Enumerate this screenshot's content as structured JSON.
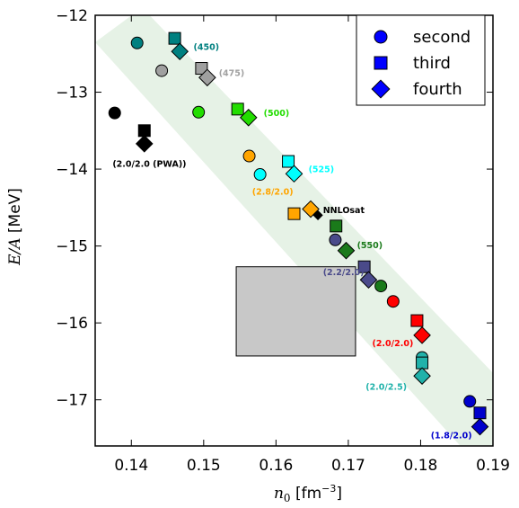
{
  "chart_data": {
    "type": "scatter",
    "xlabel": "n0 [fm⁻³]",
    "xlabel_parts": {
      "var": "n",
      "sub": "0",
      "unit": " [fm",
      "sup": "−3",
      "close": "]"
    },
    "ylabel": "E/A [MeV]",
    "ylabel_parts": {
      "var": "E/A",
      "unit": " [MeV]"
    },
    "xlim": [
      0.135,
      0.19
    ],
    "ylim": [
      -17.6,
      -12.0
    ],
    "x_ticks": [
      0.14,
      0.15,
      0.16,
      0.17,
      0.18,
      0.19
    ],
    "x_tick_labels": [
      "0.14",
      "0.15",
      "0.16",
      "0.17",
      "0.18",
      "0.19"
    ],
    "y_ticks": [
      -12,
      -13,
      -14,
      -15,
      -16,
      -17
    ],
    "y_tick_labels": [
      "−12",
      "−13",
      "−14",
      "−15",
      "−16",
      "−17"
    ],
    "legend": {
      "placement": "top-right",
      "entries": [
        {
          "label": "second",
          "marker": "circle"
        },
        {
          "label": "third",
          "marker": "square"
        },
        {
          "label": "fourth",
          "marker": "diamond"
        }
      ],
      "color": "#0000ff"
    },
    "band": {
      "color": "#e6f2e6",
      "polygon": [
        [
          0.135,
          -12.35
        ],
        [
          0.1415,
          -11.9
        ],
        [
          0.19,
          -16.65
        ],
        [
          0.19,
          -17.6
        ],
        [
          0.1855,
          -17.6
        ]
      ]
    },
    "box": {
      "x": [
        0.1545,
        0.171
      ],
      "y": [
        -16.43,
        -15.27
      ],
      "color": "#c8c8c8"
    },
    "series": [
      {
        "name": "(2.0/2.0 (PWA))",
        "color": "#000000",
        "points": [
          {
            "order": "second",
            "x": 0.1377,
            "y": -13.27
          },
          {
            "order": "third",
            "x": 0.1418,
            "y": -13.5
          },
          {
            "order": "fourth",
            "x": 0.1418,
            "y": -13.67
          }
        ]
      },
      {
        "name": "(450)",
        "color": "#008080",
        "points": [
          {
            "order": "second",
            "x": 0.1408,
            "y": -12.36
          },
          {
            "order": "third",
            "x": 0.146,
            "y": -12.3
          },
          {
            "order": "fourth",
            "x": 0.1467,
            "y": -12.47
          }
        ]
      },
      {
        "name": "(475)",
        "color": "#a0a0a0",
        "points": [
          {
            "order": "second",
            "x": 0.1442,
            "y": -12.72
          },
          {
            "order": "third",
            "x": 0.1497,
            "y": -12.69
          },
          {
            "order": "fourth",
            "x": 0.1505,
            "y": -12.81
          }
        ]
      },
      {
        "name": "(500)",
        "color": "#22dd00",
        "points": [
          {
            "order": "second",
            "x": 0.1493,
            "y": -13.26
          },
          {
            "order": "third",
            "x": 0.1547,
            "y": -13.22
          },
          {
            "order": "fourth",
            "x": 0.1562,
            "y": -13.33
          }
        ]
      },
      {
        "name": "(525)",
        "color": "#00ffff",
        "points": [
          {
            "order": "second",
            "x": 0.1578,
            "y": -14.07
          },
          {
            "order": "third",
            "x": 0.1617,
            "y": -13.9
          },
          {
            "order": "fourth",
            "x": 0.1625,
            "y": -14.06
          }
        ]
      },
      {
        "name": "(2.8/2.0)",
        "color": "#ffa500",
        "points": [
          {
            "order": "second",
            "x": 0.1563,
            "y": -13.83
          },
          {
            "order": "third",
            "x": 0.1625,
            "y": -14.58
          },
          {
            "order": "fourth",
            "x": 0.1648,
            "y": -14.52
          }
        ]
      },
      {
        "name": "NNLOsat",
        "color": "#000000",
        "points": [
          {
            "order": "fourth",
            "x": 0.1658,
            "y": -14.6
          }
        ]
      },
      {
        "name": "(550)",
        "color": "#1a7a1a",
        "points": [
          {
            "order": "second",
            "x": 0.1745,
            "y": -15.52
          },
          {
            "order": "third",
            "x": 0.1683,
            "y": -14.74
          },
          {
            "order": "fourth",
            "x": 0.1697,
            "y": -15.06
          }
        ]
      },
      {
        "name": "(2.2/2.0)",
        "color": "#4a4a8a",
        "points": [
          {
            "order": "second",
            "x": 0.1682,
            "y": -14.92
          },
          {
            "order": "third",
            "x": 0.1722,
            "y": -15.27
          },
          {
            "order": "fourth",
            "x": 0.1728,
            "y": -15.44
          }
        ]
      },
      {
        "name": "(2.0/2.0)",
        "color": "#ff0000",
        "points": [
          {
            "order": "second",
            "x": 0.1762,
            "y": -15.72
          },
          {
            "order": "third",
            "x": 0.1795,
            "y": -15.97
          },
          {
            "order": "fourth",
            "x": 0.1802,
            "y": -16.16
          }
        ]
      },
      {
        "name": "(2.0/2.5)",
        "color": "#20b2aa",
        "points": [
          {
            "order": "second",
            "x": 0.1802,
            "y": -16.45
          },
          {
            "order": "third",
            "x": 0.1802,
            "y": -16.52
          },
          {
            "order": "fourth",
            "x": 0.1802,
            "y": -16.69
          }
        ]
      },
      {
        "name": "(1.8/2.0)",
        "color": "#0000cc",
        "points": [
          {
            "order": "second",
            "x": 0.1868,
            "y": -17.02
          },
          {
            "order": "third",
            "x": 0.1882,
            "y": -17.17
          },
          {
            "order": "fourth",
            "x": 0.1882,
            "y": -17.35
          }
        ]
      }
    ],
    "annotations": [
      {
        "text": "(450)",
        "series": "(450)",
        "x": 0.1486,
        "y": -12.45
      },
      {
        "text": "(475)",
        "series": "(475)",
        "x": 0.1521,
        "y": -12.79
      },
      {
        "text": "(500)",
        "series": "(500)",
        "x": 0.1583,
        "y": -13.31
      },
      {
        "text": "(525)",
        "series": "(525)",
        "x": 0.1645,
        "y": -14.04
      },
      {
        "text": "(2.8/2.0)",
        "series": "(2.8/2.0)",
        "x": 0.1567,
        "y": -14.33
      },
      {
        "text": "(2.0/2.0 (PWA))",
        "series": "(2.0/2.0 (PWA))",
        "x": 0.1374,
        "y": -13.97
      },
      {
        "text": "NNLOsat",
        "series": "NNLOsat",
        "x": 0.1665,
        "y": -14.57
      },
      {
        "text": "(550)",
        "series": "(550)",
        "x": 0.1712,
        "y": -15.03
      },
      {
        "text": "(2.2/2.0)",
        "series": "(2.2/2.0)",
        "x": 0.1665,
        "y": -15.38
      },
      {
        "text": "(2.0/2.0)",
        "series": "(2.0/2.0)",
        "x": 0.1733,
        "y": -16.3
      },
      {
        "text": "(2.0/2.5)",
        "series": "(2.0/2.5)",
        "x": 0.1724,
        "y": -16.87
      },
      {
        "text": "(1.8/2.0)",
        "series": "(1.8/2.0)",
        "x": 0.1814,
        "y": -17.5
      }
    ]
  }
}
